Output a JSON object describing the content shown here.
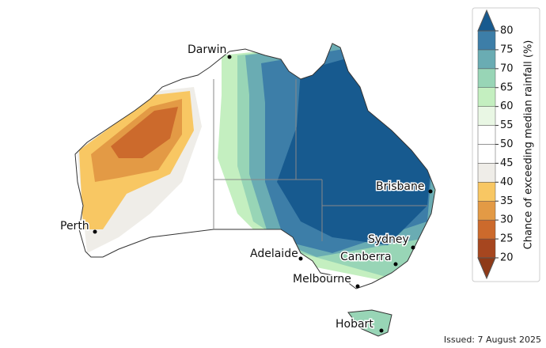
{
  "map": {
    "cities": [
      {
        "label": "Darwin"
      },
      {
        "label": "Perth"
      },
      {
        "label": "Adelaide"
      },
      {
        "label": "Melbourne"
      },
      {
        "label": "Canberra"
      },
      {
        "label": "Sydney"
      },
      {
        "label": "Brisbane"
      },
      {
        "label": "Hobart"
      }
    ],
    "colorbar": {
      "label": "Chance of exceeding median rainfall (%)",
      "ticks": [
        20,
        25,
        30,
        35,
        40,
        45,
        50,
        55,
        60,
        65,
        70,
        75,
        80
      ],
      "colors": [
        "#a6461f",
        "#cc6a2c",
        "#e39a45",
        "#f8c763",
        "#efede8",
        "#ffffff",
        "#ffffff",
        "#e9f7e4",
        "#c4efc0",
        "#98d5b6",
        "#6aacb3",
        "#3d7ea8"
      ],
      "low_color": "#8e3a18",
      "high_color": "#175a8f"
    },
    "issued": "Issued: 7 August 2025"
  }
}
